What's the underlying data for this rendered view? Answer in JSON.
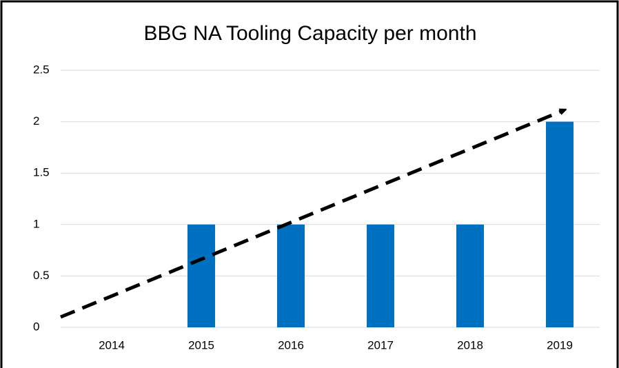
{
  "chart_data": {
    "type": "bar",
    "title": "BBG NA Tooling Capacity per month",
    "categories": [
      "2014",
      "2015",
      "2016",
      "2017",
      "2018",
      "2019"
    ],
    "values": [
      0,
      1,
      1,
      1,
      1,
      2
    ],
    "color": "#0070c0",
    "ylim": [
      0,
      2.5
    ],
    "yticks": [
      0,
      0.5,
      1,
      1.5,
      2,
      2.5
    ],
    "grid": true
  }
}
